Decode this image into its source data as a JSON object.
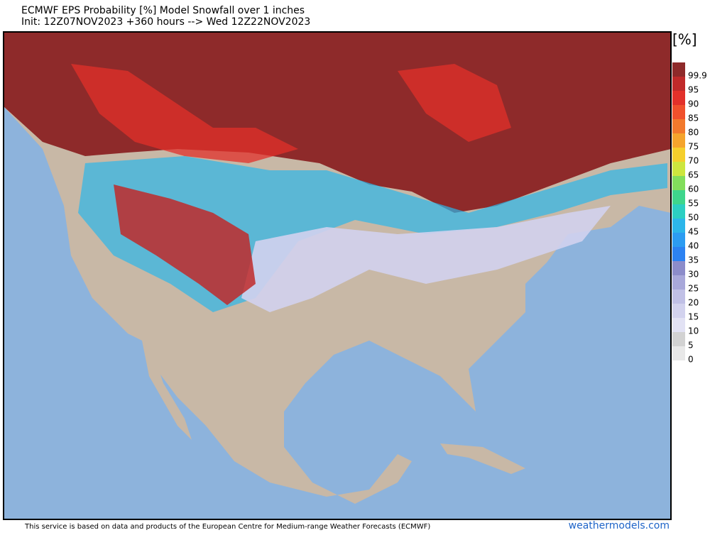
{
  "header": {
    "title": "ECMWF EPS Probability [%] Model Snowfall over 1 inches",
    "subtitle": "Init: 12Z07NOV2023 +360 hours --> Wed 12Z22NOV2023"
  },
  "colorbar": {
    "unit": "[%]",
    "levels": [
      {
        "label": "99.9",
        "color": "#8e2a2a"
      },
      {
        "label": "95",
        "color": "#c02a2a"
      },
      {
        "label": "90",
        "color": "#e2302a"
      },
      {
        "label": "85",
        "color": "#f0502c"
      },
      {
        "label": "80",
        "color": "#f2792c"
      },
      {
        "label": "75",
        "color": "#f5a42c"
      },
      {
        "label": "70",
        "color": "#f5cf2c"
      },
      {
        "label": "65",
        "color": "#cde63e"
      },
      {
        "label": "60",
        "color": "#82de5c"
      },
      {
        "label": "55",
        "color": "#3ed68c"
      },
      {
        "label": "50",
        "color": "#2ccfc2"
      },
      {
        "label": "45",
        "color": "#2cb6ea"
      },
      {
        "label": "40",
        "color": "#2c9cf2"
      },
      {
        "label": "35",
        "color": "#2c82f2"
      },
      {
        "label": "30",
        "color": "#8c8cca"
      },
      {
        "label": "25",
        "color": "#a8a8da"
      },
      {
        "label": "20",
        "color": "#c0c0e6"
      },
      {
        "label": "15",
        "color": "#d2d2ee"
      },
      {
        "label": "10",
        "color": "#e2e2f4"
      },
      {
        "label": "5",
        "color": "#d2d2d2"
      },
      {
        "label": "0",
        "color": "#e8e8e8"
      }
    ]
  },
  "footer": {
    "credit": "This service is based on data and products of the European Centre for Medium-range Weather Forecasts (ECMWF)",
    "site": "weathermodels.com"
  }
}
